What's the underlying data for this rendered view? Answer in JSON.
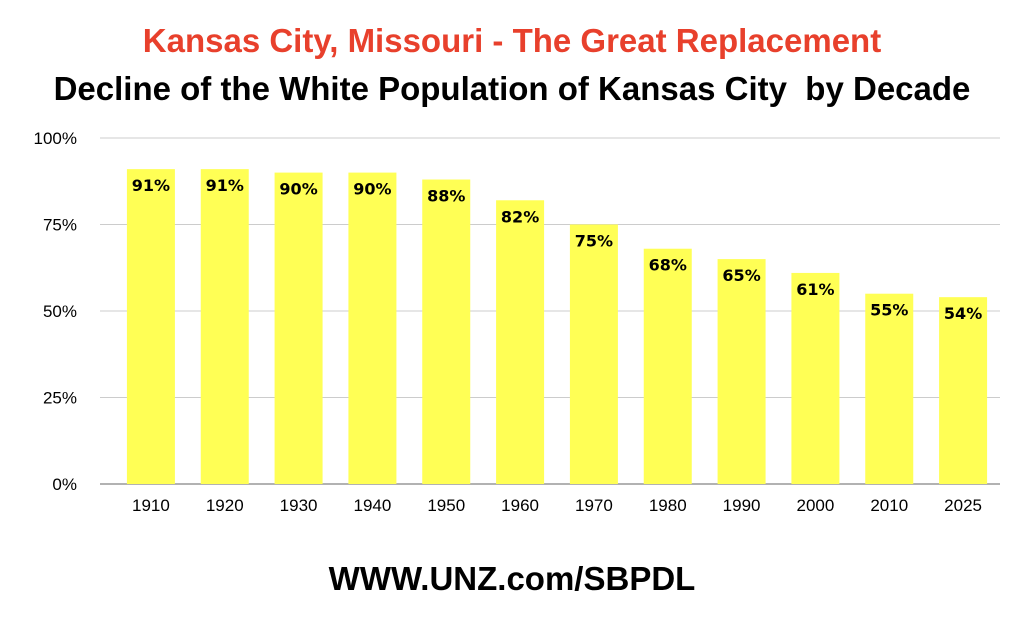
{
  "chart_data": {
    "type": "bar",
    "title": "Kansas City, Missouri - The Great Replacement",
    "subtitle": "Decline of the White Population of Kansas City  by Decade",
    "footer": "WWW.UNZ.com/SBPDL",
    "categories": [
      "1910",
      "1920",
      "1930",
      "1940",
      "1950",
      "1960",
      "1970",
      "1980",
      "1990",
      "2000",
      "2010",
      "2025"
    ],
    "values": [
      91,
      91,
      90,
      90,
      88,
      82,
      75,
      68,
      65,
      61,
      55,
      54
    ],
    "data_labels": [
      "91%",
      "91%",
      "90%",
      "90%",
      "88%",
      "82%",
      "75%",
      "68%",
      "65%",
      "61%",
      "55%",
      "54%"
    ],
    "y_ticks": [
      0,
      25,
      50,
      75,
      100
    ],
    "y_tick_labels": [
      "0%",
      "25%",
      "50%",
      "75%",
      "100%"
    ],
    "ylim": [
      0,
      100
    ],
    "xlabel": "",
    "ylabel": "",
    "grid": true,
    "legend": "none",
    "colors": {
      "bar": "#ffff55",
      "title": "#e8402c",
      "grid": "#cccccc",
      "axis": "#999999",
      "text": "#000000"
    }
  }
}
